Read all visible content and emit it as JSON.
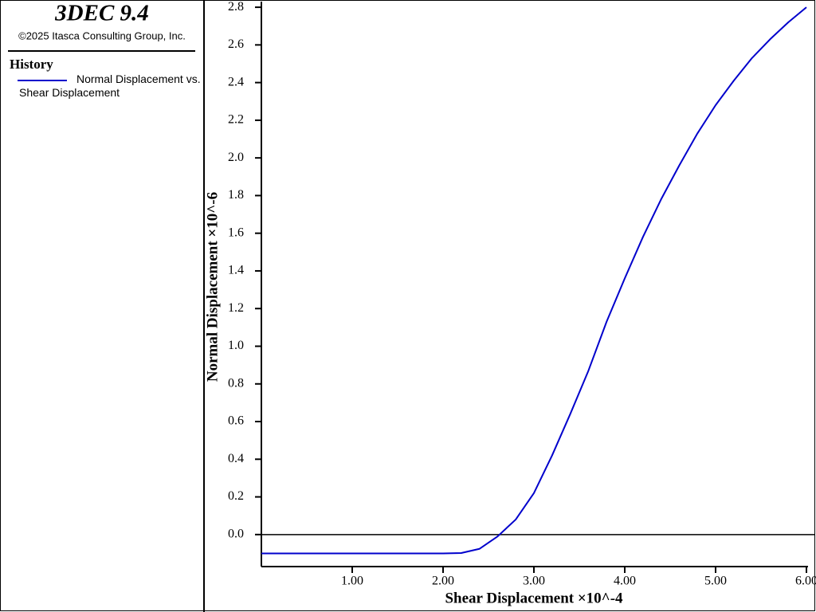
{
  "header": {
    "title": "3DEC 9.4",
    "copyright": "©2025 Itasca Consulting Group, Inc.",
    "section": "History"
  },
  "chart_data": {
    "type": "line",
    "xlabel": "Shear Displacement ×10^-4",
    "ylabel": "Normal Displacement ×10^-6",
    "x": [
      0,
      0.5,
      1.0,
      1.5,
      2.0,
      2.2,
      2.4,
      2.6,
      2.8,
      3.0,
      3.2,
      3.4,
      3.6,
      3.8,
      4.0,
      4.2,
      4.4,
      4.6,
      4.8,
      5.0,
      5.2,
      5.4,
      5.6,
      5.8,
      6.0
    ],
    "series": [
      {
        "name": "Normal Displacement vs. Shear Displacement",
        "color": "#0000cc",
        "values": [
          -0.1,
          -0.1,
          -0.1,
          -0.1,
          -0.1,
          -0.098,
          -0.076,
          -0.01,
          0.08,
          0.22,
          0.42,
          0.64,
          0.87,
          1.13,
          1.36,
          1.58,
          1.78,
          1.96,
          2.13,
          2.28,
          2.41,
          2.53,
          2.63,
          2.72,
          2.8
        ]
      }
    ],
    "xlim": [
      0,
      6.0
    ],
    "ylim": [
      -0.17,
      2.83
    ],
    "xticks": [
      {
        "value": 1,
        "label": "1.00"
      },
      {
        "value": 2,
        "label": "2.00"
      },
      {
        "value": 3,
        "label": "3.00"
      },
      {
        "value": 4,
        "label": "4.00"
      },
      {
        "value": 5,
        "label": "5.00"
      },
      {
        "value": 6,
        "label": "6.00"
      }
    ],
    "yticks": [
      {
        "value": 0,
        "label": "0.0"
      },
      0.2,
      0.4,
      0.6,
      0.8,
      {
        "value": 1,
        "label": "1.0"
      },
      1.2,
      1.4,
      1.6,
      1.8,
      {
        "value": 2,
        "label": "2.0"
      },
      2.2,
      2.4,
      2.6,
      2.8
    ],
    "zero_line": true
  }
}
